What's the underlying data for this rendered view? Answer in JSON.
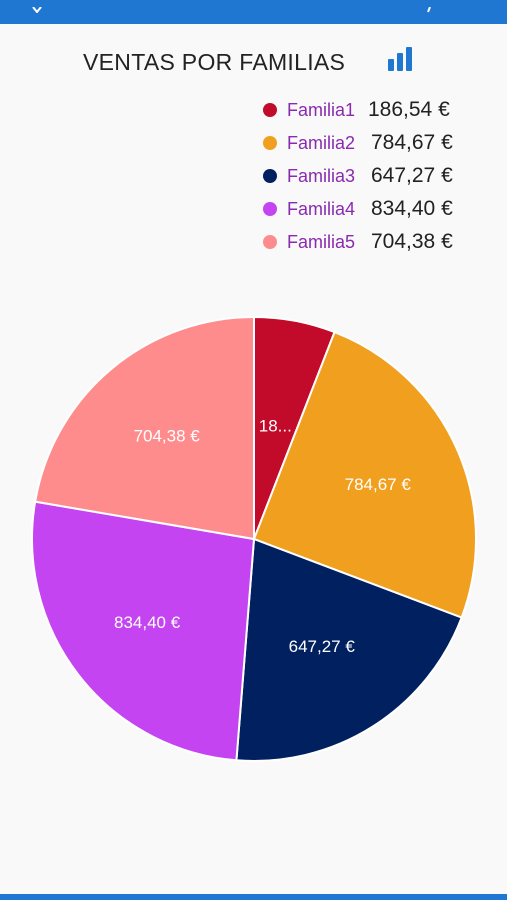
{
  "app": {
    "accent_color": "#1f77d2"
  },
  "header": {
    "title": "VENTAS POR FAMILIAS",
    "icon": "bar-chart-icon"
  },
  "chart_data": {
    "type": "pie",
    "title": "VENTAS POR FAMILIAS",
    "legend_position": "top-right",
    "slices": [
      {
        "name": "Familia1",
        "value": 186.54,
        "value_label": "186,54 €",
        "slice_label": "18...",
        "color": "#c20a2a"
      },
      {
        "name": "Familia2",
        "value": 784.67,
        "value_label": "784,67 €",
        "slice_label": "784,67 €",
        "color": "#f0a01e"
      },
      {
        "name": "Familia3",
        "value": 647.27,
        "value_label": "647,27 €",
        "slice_label": "647,27 €",
        "color": "#002060"
      },
      {
        "name": "Familia4",
        "value": 834.4,
        "value_label": "834,40 €",
        "slice_label": "834,40 €",
        "color": "#c444f2"
      },
      {
        "name": "Familia5",
        "value": 704.38,
        "value_label": "704,38 €",
        "slice_label": "704,38 €",
        "color": "#ff8c8c"
      }
    ]
  }
}
